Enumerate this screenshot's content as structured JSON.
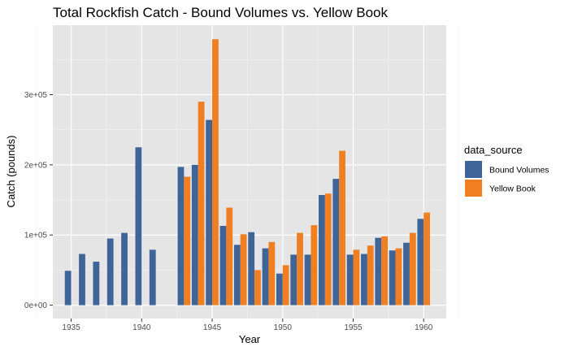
{
  "chart_data": {
    "type": "bar",
    "title": "Total Rockfish Catch - Bound Volumes vs. Yellow Book",
    "xlabel": "Year",
    "ylabel": "Catch (pounds)",
    "xlim": [
      1933.7,
      1961.6
    ],
    "ylim": [
      -19000,
      399000
    ],
    "x_ticks": [
      1935,
      1940,
      1945,
      1950,
      1955,
      1960
    ],
    "y_ticks": [
      0,
      100000,
      200000,
      300000
    ],
    "y_tick_labels": [
      "0e+00",
      "1e+05",
      "2e+05",
      "3e+05"
    ],
    "grid": true,
    "panel_background": "#e5e5e5",
    "legend": {
      "title": "data_source",
      "position": "right"
    },
    "series": [
      {
        "name": "Bound Volumes",
        "color": "#3f6598",
        "x": [
          1935,
          1936,
          1937,
          1938,
          1939,
          1940,
          1941,
          1943,
          1944,
          1945,
          1946,
          1947,
          1948,
          1949,
          1950,
          1951,
          1952,
          1953,
          1954,
          1955,
          1956,
          1957,
          1958,
          1959,
          1960
        ],
        "values": [
          49000,
          73000,
          62000,
          95000,
          103000,
          225000,
          79000,
          197000,
          200000,
          264000,
          113000,
          86000,
          104000,
          81000,
          45000,
          72000,
          72000,
          157000,
          180000,
          72000,
          73000,
          96000,
          78000,
          89000,
          123000
        ]
      },
      {
        "name": "Yellow Book",
        "color": "#f07f22",
        "x": [
          1943,
          1944,
          1945,
          1946,
          1947,
          1948,
          1949,
          1950,
          1951,
          1952,
          1953,
          1954,
          1955,
          1956,
          1957,
          1958,
          1959,
          1960
        ],
        "values": [
          183000,
          290000,
          379000,
          139000,
          101000,
          50000,
          90000,
          57000,
          103000,
          114000,
          159000,
          220000,
          79000,
          85000,
          98000,
          81000,
          103000,
          132000
        ]
      }
    ]
  }
}
